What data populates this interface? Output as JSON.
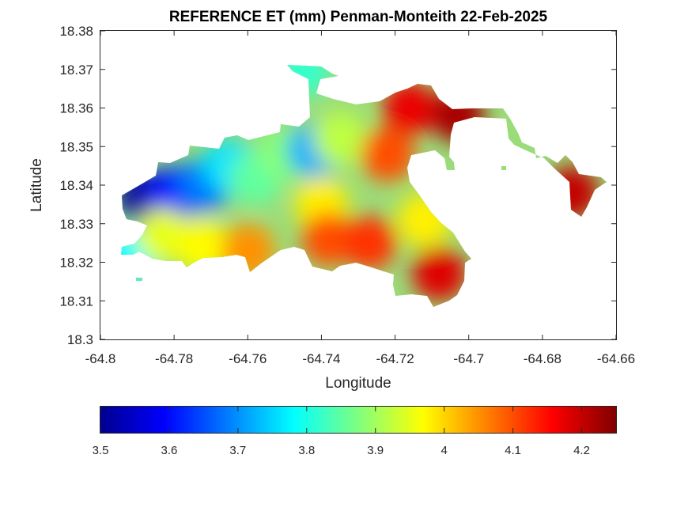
{
  "chart_data": {
    "type": "heatmap",
    "title": "REFERENCE ET (mm) Penman-Monteith 22-Feb-2025",
    "xlabel": "Longitude",
    "ylabel": "Latitude",
    "xlim": [
      -64.8,
      -64.66
    ],
    "ylim": [
      18.3,
      18.38
    ],
    "x_ticks": [
      -64.8,
      -64.78,
      -64.76,
      -64.74,
      -64.72,
      -64.7,
      -64.68,
      -64.66
    ],
    "x_tick_labels": [
      "-64.8",
      "-64.78",
      "-64.76",
      "-64.74",
      "-64.72",
      "-64.7",
      "-64.68",
      "-64.66"
    ],
    "y_ticks": [
      18.3,
      18.31,
      18.32,
      18.33,
      18.34,
      18.35,
      18.36,
      18.37,
      18.38
    ],
    "y_tick_labels": [
      "18.3",
      "18.31",
      "18.32",
      "18.33",
      "18.34",
      "18.35",
      "18.36",
      "18.37",
      "18.38"
    ],
    "colorbar": {
      "orientation": "horizontal",
      "location": "below",
      "colormap": "jet",
      "range": [
        3.5,
        4.25
      ],
      "ticks": [
        3.5,
        3.6,
        3.7,
        3.8,
        3.9,
        4.0,
        4.1,
        4.2
      ],
      "tick_labels": [
        "3.5",
        "3.6",
        "3.7",
        "3.8",
        "3.9",
        "4",
        "4.1",
        "4.2"
      ]
    },
    "grid": false,
    "field_samples": [
      {
        "lon": -64.788,
        "lat": 18.336,
        "value": 3.52
      },
      {
        "lon": -64.78,
        "lat": 18.338,
        "value": 3.6
      },
      {
        "lon": -64.772,
        "lat": 18.34,
        "value": 3.68
      },
      {
        "lon": -64.765,
        "lat": 18.345,
        "value": 3.76
      },
      {
        "lon": -64.758,
        "lat": 18.342,
        "value": 3.85
      },
      {
        "lon": -64.75,
        "lat": 18.348,
        "value": 3.88
      },
      {
        "lon": -64.742,
        "lat": 18.349,
        "value": 3.72
      },
      {
        "lon": -64.745,
        "lat": 18.37,
        "value": 3.82
      },
      {
        "lon": -64.735,
        "lat": 18.352,
        "value": 3.92
      },
      {
        "lon": -64.74,
        "lat": 18.335,
        "value": 3.98
      },
      {
        "lon": -64.738,
        "lat": 18.326,
        "value": 4.1
      },
      {
        "lon": -64.727,
        "lat": 18.325,
        "value": 4.12
      },
      {
        "lon": -64.722,
        "lat": 18.348,
        "value": 4.1
      },
      {
        "lon": -64.716,
        "lat": 18.36,
        "value": 4.17
      },
      {
        "lon": -64.712,
        "lat": 18.331,
        "value": 3.98
      },
      {
        "lon": -64.708,
        "lat": 18.317,
        "value": 4.18
      },
      {
        "lon": -64.703,
        "lat": 18.358,
        "value": 4.22
      },
      {
        "lon": -64.672,
        "lat": 18.338,
        "value": 4.2
      },
      {
        "lon": -64.792,
        "lat": 18.322,
        "value": 3.78
      },
      {
        "lon": -64.783,
        "lat": 18.327,
        "value": 3.95
      },
      {
        "lon": -64.772,
        "lat": 18.324,
        "value": 3.97
      },
      {
        "lon": -64.76,
        "lat": 18.323,
        "value": 4.05
      }
    ]
  }
}
